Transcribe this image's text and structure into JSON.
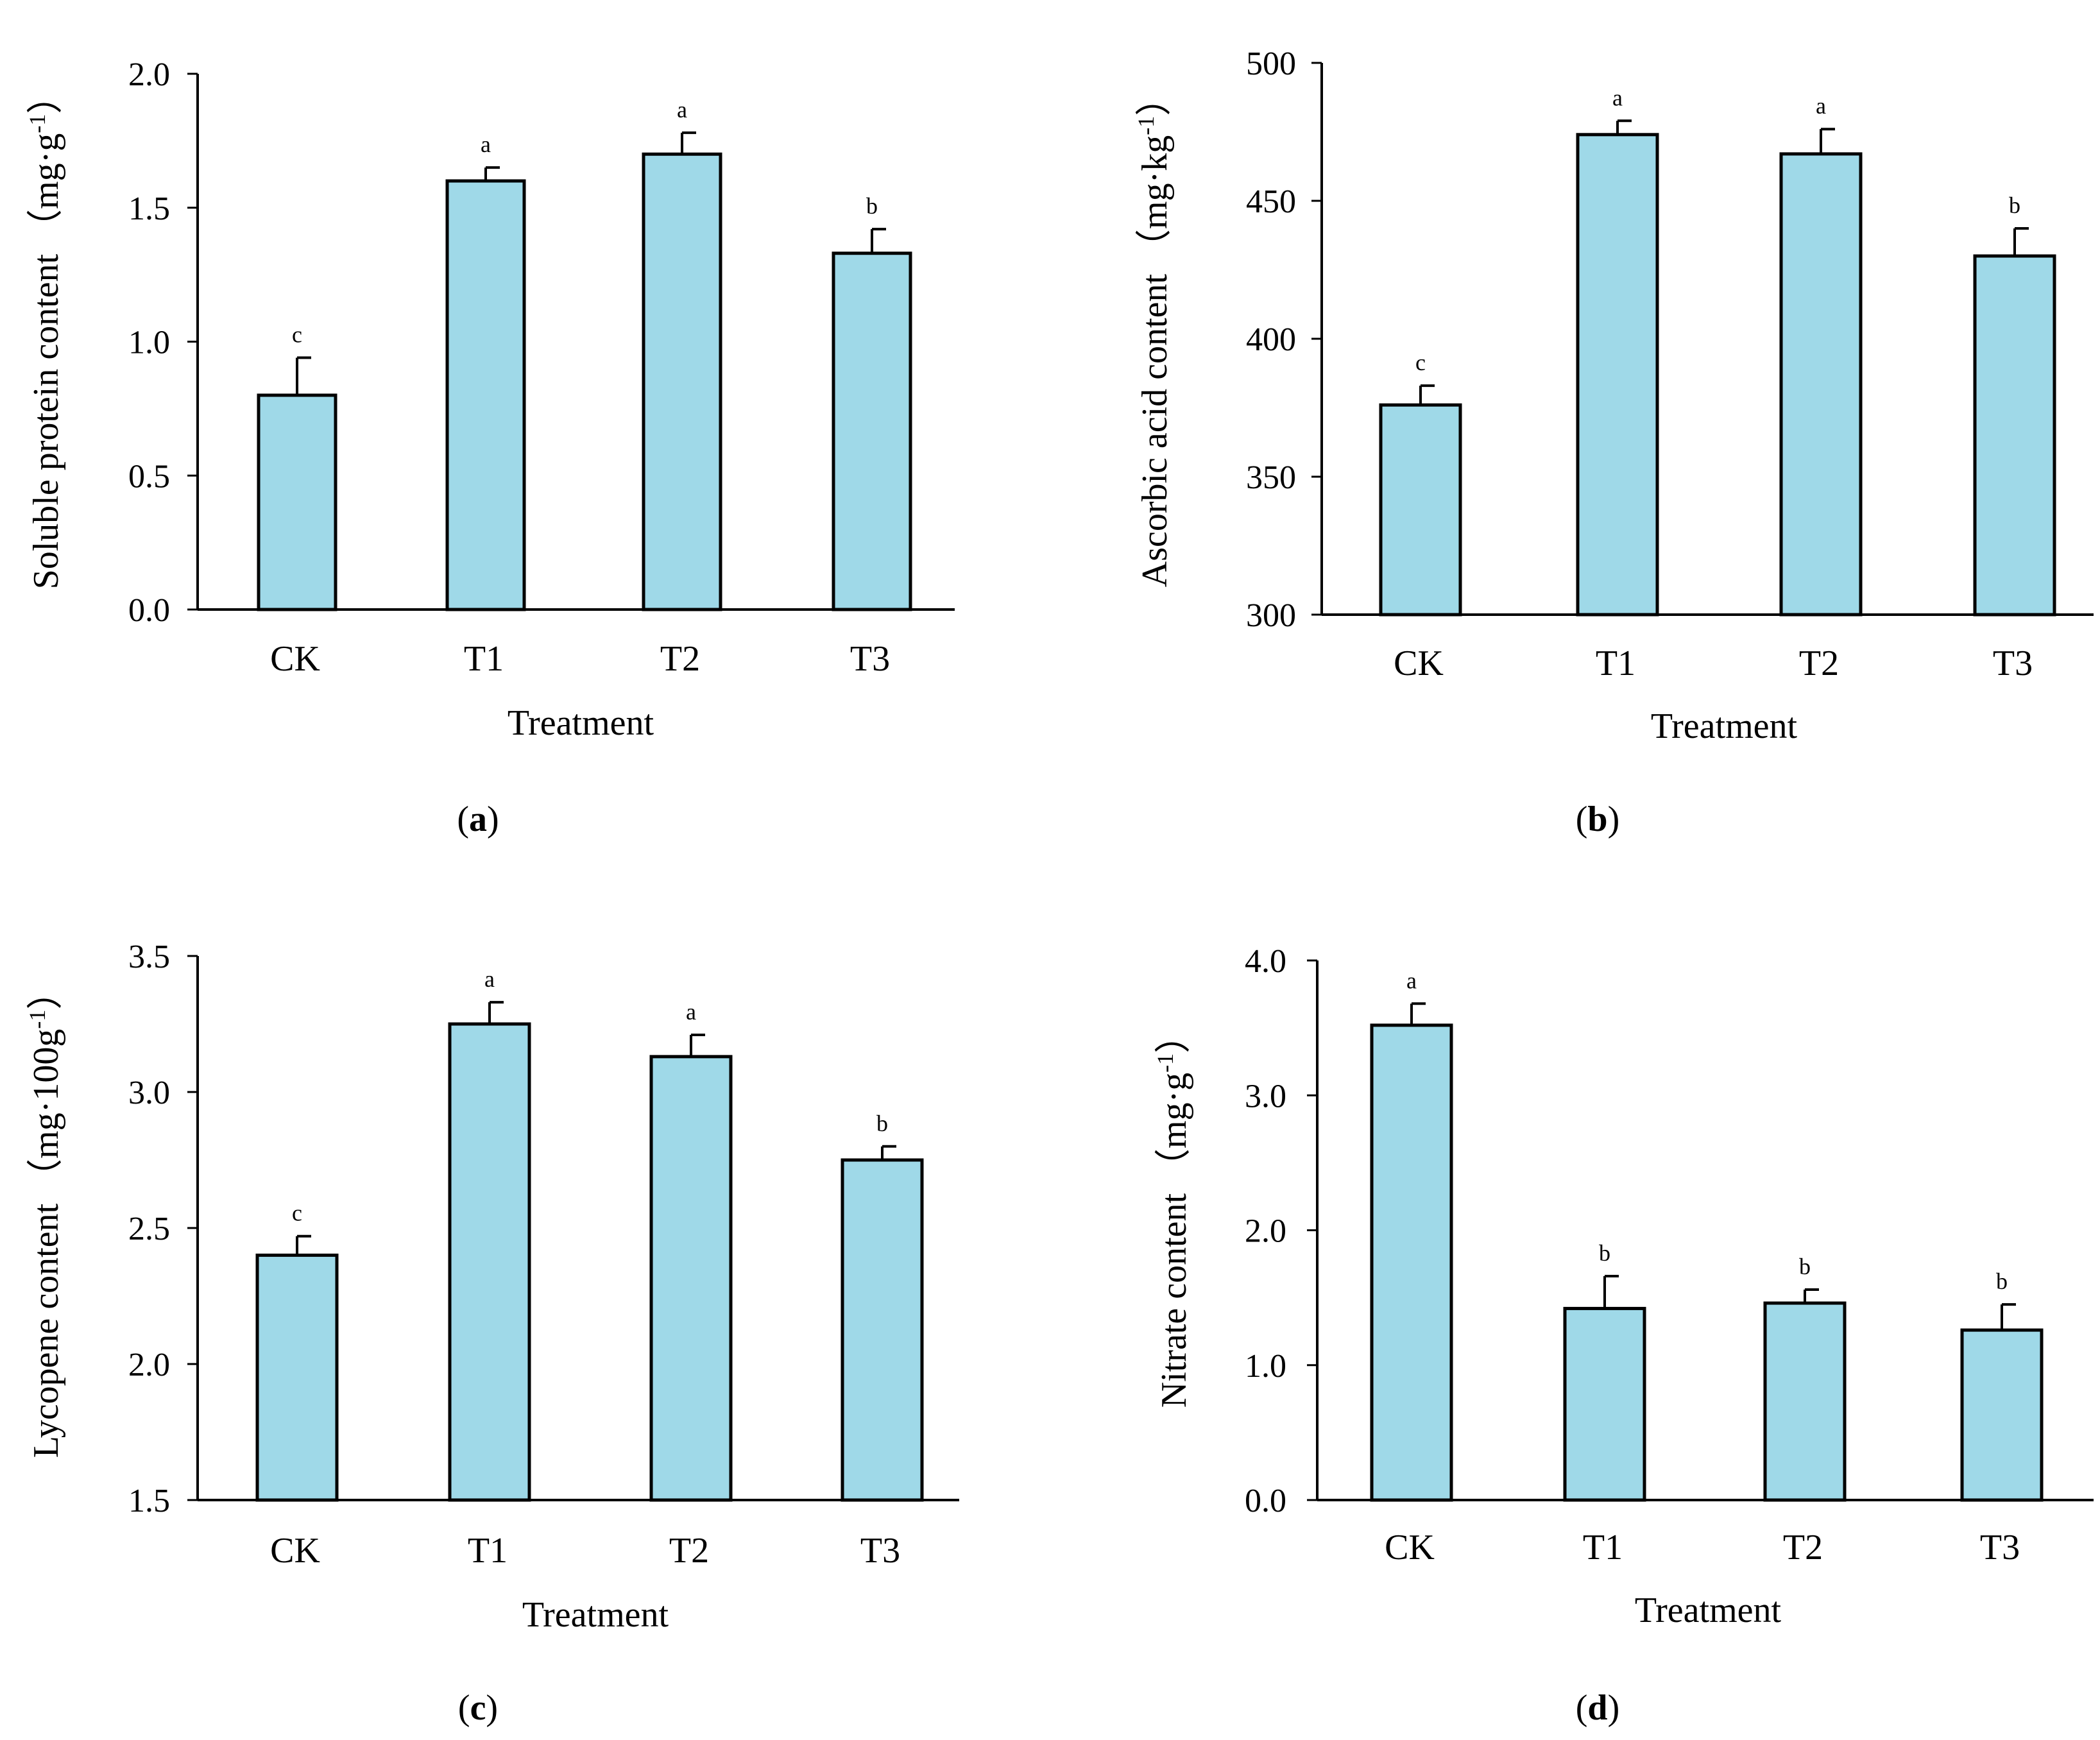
{
  "figure": {
    "charts": [
      {
        "panel_label": "a",
        "ylabel": "Soluble protein content （mg·g",
        "yunit_sup": "-1",
        "yunit_close": "）"
      },
      {
        "panel_label": "b",
        "ylabel": "Ascorbic acid content （mg·kg",
        "yunit_sup": "-1",
        "yunit_close": "）"
      },
      {
        "panel_label": "c",
        "ylabel": "Lycopene content （mg·100g",
        "yunit_sup": "-1",
        "yunit_close": "）"
      },
      {
        "panel_label": "d",
        "ylabel": "Nitrate content （mg·g",
        "yunit_sup": "-1",
        "yunit_close": "）"
      }
    ]
  },
  "colors": {
    "bar_fill": "#9fd9e8",
    "bar_stroke": "#000000",
    "axis": "#000000"
  },
  "chart_data": [
    {
      "type": "bar",
      "panel": "a",
      "title": "",
      "xlabel": "Treatment",
      "ylabel": "Soluble protein content （mg·g-1）",
      "categories": [
        "CK",
        "T1",
        "T2",
        "T3"
      ],
      "values": [
        0.8,
        1.6,
        1.7,
        1.33
      ],
      "errors": [
        0.14,
        0.05,
        0.08,
        0.09
      ],
      "significance": [
        "c",
        "a",
        "a",
        "b"
      ],
      "ylim": [
        0.0,
        2.0
      ],
      "yticks": [
        0.0,
        0.5,
        1.0,
        1.5,
        2.0
      ],
      "ytick_labels": [
        "0.0",
        "0.5",
        "1.0",
        "1.5",
        "2.0"
      ]
    },
    {
      "type": "bar",
      "panel": "b",
      "title": "",
      "xlabel": "Treatment",
      "ylabel": "Ascorbic acid content （mg·kg-1）",
      "categories": [
        "CK",
        "T1",
        "T2",
        "T3"
      ],
      "values": [
        376,
        474,
        467,
        430
      ],
      "errors": [
        7,
        5,
        9,
        10
      ],
      "significance": [
        "c",
        "a",
        "a",
        "b"
      ],
      "ylim": [
        300,
        500
      ],
      "yticks": [
        300,
        350,
        400,
        450,
        500
      ],
      "ytick_labels": [
        "300",
        "350",
        "400",
        "450",
        "500"
      ]
    },
    {
      "type": "bar",
      "panel": "c",
      "title": "",
      "xlabel": "Treatment",
      "ylabel": "Lycopene content （mg·100g-1）",
      "categories": [
        "CK",
        "T1",
        "T2",
        "T3"
      ],
      "values": [
        2.4,
        3.25,
        3.13,
        2.75
      ],
      "errors": [
        0.07,
        0.08,
        0.08,
        0.05
      ],
      "significance": [
        "c",
        "a",
        "a",
        "b"
      ],
      "ylim": [
        1.5,
        3.5
      ],
      "yticks": [
        1.5,
        2.0,
        2.5,
        3.0,
        3.5
      ],
      "ytick_labels": [
        "1.5",
        "2.0",
        "2.5",
        "3.0",
        "3.5"
      ]
    },
    {
      "type": "bar",
      "panel": "d",
      "title": "",
      "xlabel": "Treatment",
      "ylabel": "Nitrate content （mg·g-1）",
      "categories": [
        "CK",
        "T1",
        "T2",
        "T3"
      ],
      "values": [
        3.52,
        1.42,
        1.46,
        1.26
      ],
      "errors": [
        0.16,
        0.24,
        0.1,
        0.19
      ],
      "significance": [
        "a",
        "b",
        "b",
        "b"
      ],
      "ylim": [
        0.0,
        4.0
      ],
      "yticks": [
        0.0,
        1.0,
        2.0,
        3.0,
        4.0
      ],
      "ytick_labels": [
        "0.0",
        "1.0",
        "2.0",
        "3.0",
        "4.0"
      ]
    }
  ]
}
